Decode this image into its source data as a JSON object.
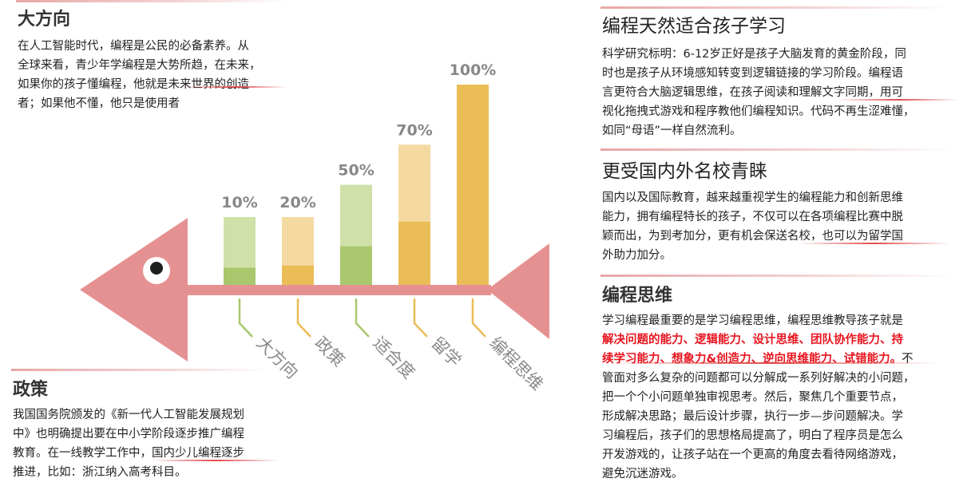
{
  "left_top": {
    "title": "大方向",
    "lines": [
      "在人工智能时代，编程是公民的必备素养。从",
      "全球来看，青少年学编程是大势所趋，在未来，",
      "如果你的孩子懂编程，他就是未来世界的创造",
      "者；如果他不懂，他只是使用者"
    ]
  },
  "left_bottom": {
    "title": "政策",
    "lines": [
      "我国国务院颁发的《新一代人工智能发展规划",
      "中》也明确提出要在中小学阶段逐步推广编程",
      "教育。在一线教学工作中，国内少儿编程逐步",
      "推进，比如：浙江纳入高考科目。"
    ]
  },
  "right1": {
    "title": "编程天然适合孩子学习",
    "lines": [
      "科学研究标明：6-12岁正好是孩子大脑发育的黄金阶段，同",
      "时也是孩子从环境感知转变到逻辑链接的学习阶段。编程语",
      "言更符合大脑逻辑思维，在孩子阅读和理解文字同期，用可",
      "视化拖拽式游戏和程序教他们编程知识。代码不再生涩难懂，",
      "如同“母语”一样自然流利。"
    ]
  },
  "right2": {
    "title": "更受国内外名校青睐",
    "lines": [
      "国内以及国际教育，越来越重视学生的编程能力和创新思维",
      "能力，拥有编程特长的孩子，不仅可以在各项编程比赛中脱",
      "颖而出，为到考加分，更有机会保送名校，也可以为留学国",
      "外助力加分。"
    ]
  },
  "right3": {
    "title": "编程思维",
    "line1": "学习编程最重要的是学习编程思维，编程思维教导孩子就是",
    "red1": "解决问题的能力、逻辑能力、设计思维、团队协作能力、持",
    "red2": "续学习能力、想象力&创造力、逆向思维能力、试错能力。",
    "tail2": "不",
    "lines": [
      "管面对多么复杂的问题都可以分解成一系列好解决的小问题，",
      "把一个个小问题单独审视思考。然后，聚焦几个重要节点，",
      "形成解决思路；最后设计步骤，执行一步—步问题解决。学",
      "习编程后，孩子们的思想格局提高了，明白了程序员是怎么",
      "开发游戏的，让孩子站在一个更高的角度去看待网络游戏，",
      "避免沉迷游戏。"
    ]
  },
  "chart_data": {
    "type": "bar",
    "categories": [
      "大方向",
      "政策",
      "适合度",
      "留学",
      "编程思维"
    ],
    "values": [
      10,
      20,
      50,
      70,
      100
    ],
    "value_labels": [
      "10%",
      "20%",
      "50%",
      "70%",
      "100%"
    ],
    "title": "",
    "xlabel": "",
    "ylabel": "",
    "ylim": [
      0,
      100
    ],
    "colors": {
      "green_light": "#cfe0a9",
      "green_dark": "#a9c76d",
      "orange_light": "#f4d9a1",
      "orange_dark": "#eabd57",
      "fish": "#e69191",
      "label": "#888888"
    }
  }
}
